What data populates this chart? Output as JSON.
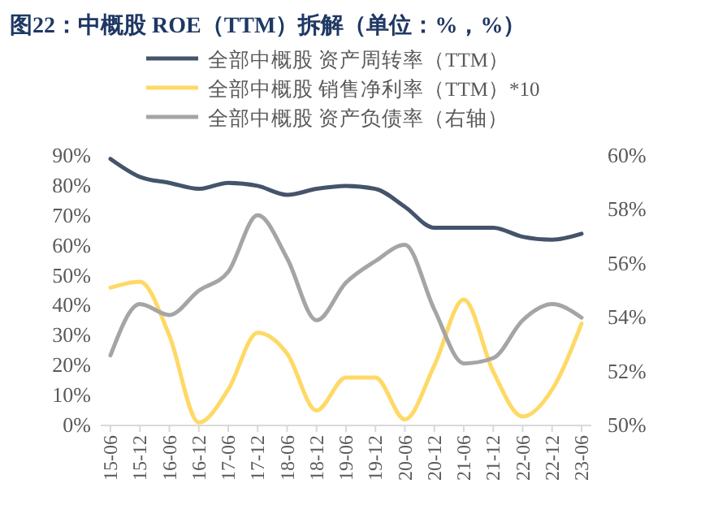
{
  "chart_data": {
    "type": "line",
    "title": "图22：中概股 ROE（TTM）拆解（单位：%，%）",
    "categories": [
      "15-06",
      "15-12",
      "16-06",
      "16-12",
      "17-06",
      "17-12",
      "18-06",
      "18-12",
      "19-06",
      "19-12",
      "20-06",
      "20-12",
      "21-06",
      "21-12",
      "22-06",
      "22-12",
      "23-06"
    ],
    "series": [
      {
        "name": "全部中概股 资产周转率（TTM）",
        "color": "#44546a",
        "values": [
          89,
          83,
          81,
          79,
          81,
          80,
          77,
          79,
          80,
          79,
          73,
          66,
          66,
          66,
          63,
          62,
          64
        ]
      },
      {
        "name": "全部中概股 销售净利率（TTM）*10",
        "color": "#ffd966",
        "values": [
          46,
          48,
          30,
          1,
          12,
          31,
          24,
          5,
          16,
          16,
          2,
          20,
          42,
          18,
          3,
          12,
          34
        ]
      },
      {
        "name": "全部中概股 资产负债率（右轴）",
        "color": "#a5a5a5",
        "axis": "y2",
        "values": [
          52.6,
          54.5,
          54.1,
          55.0,
          55.7,
          57.8,
          56.2,
          53.9,
          55.3,
          56.1,
          56.7,
          54.3,
          52.3,
          52.5,
          53.9,
          54.5,
          54.0
        ]
      }
    ],
    "ylim": [
      0,
      90
    ],
    "yticks": [
      {
        "value": 0,
        "label": "0%"
      },
      {
        "value": 10,
        "label": "10%"
      },
      {
        "value": 20,
        "label": "20%"
      },
      {
        "value": 30,
        "label": "30%"
      },
      {
        "value": 40,
        "label": "40%"
      },
      {
        "value": 50,
        "label": "50%"
      },
      {
        "value": 60,
        "label": "60%"
      },
      {
        "value": 70,
        "label": "70%"
      },
      {
        "value": 80,
        "label": "80%"
      },
      {
        "value": 90,
        "label": "90%"
      }
    ],
    "y2lim": [
      50,
      60
    ],
    "y2ticks": [
      {
        "value": 50,
        "label": "50%"
      },
      {
        "value": 52,
        "label": "52%"
      },
      {
        "value": 54,
        "label": "54%"
      },
      {
        "value": 56,
        "label": "56%"
      },
      {
        "value": 58,
        "label": "58%"
      },
      {
        "value": 60,
        "label": "60%"
      }
    ],
    "grid": false,
    "legend": "top",
    "line_style": "solid"
  }
}
